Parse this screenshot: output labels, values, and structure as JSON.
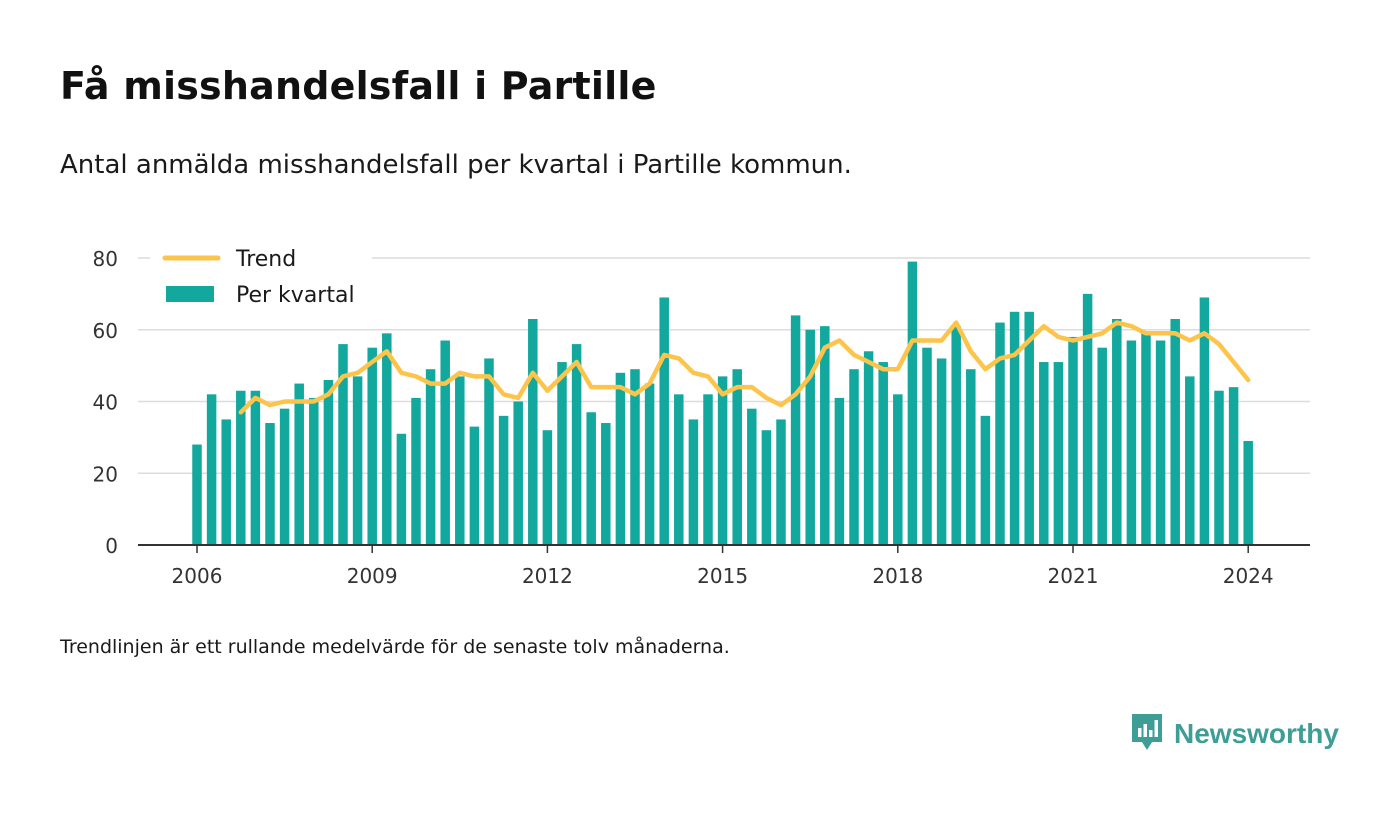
{
  "header": {
    "title": "Få misshandelsfall i Partille",
    "subtitle": "Antal anmälda misshandelsfall per kvartal i Partille kommun."
  },
  "footer": {
    "note": "Trendlinjen är ett rullande medelvärde för de senaste tolv månaderna.",
    "brand": "Newsworthy",
    "brand_icon": "bar-chart-speech-bubble-icon"
  },
  "colors": {
    "bar": "#13a89e",
    "trend": "#fcc44b",
    "grid": "#dcdcdc",
    "axis": "#333333",
    "brand": "#3e9e95"
  },
  "chart_data": {
    "type": "bar",
    "title": "Få misshandelsfall i Partille",
    "subtitle": "Antal anmälda misshandelsfall per kvartal i Partille kommun.",
    "xlabel": "",
    "ylabel": "",
    "ylim": [
      0,
      80
    ],
    "yticks": [
      "0",
      "20",
      "40",
      "60",
      "80"
    ],
    "xticks": [
      "2006",
      "2009",
      "2012",
      "2015",
      "2018",
      "2021",
      "2024"
    ],
    "grid": true,
    "legend_position": "top-left",
    "categories": [
      "2006 Q1",
      "2006 Q2",
      "2006 Q3",
      "2006 Q4",
      "2007 Q1",
      "2007 Q2",
      "2007 Q3",
      "2007 Q4",
      "2008 Q1",
      "2008 Q2",
      "2008 Q3",
      "2008 Q4",
      "2009 Q1",
      "2009 Q2",
      "2009 Q3",
      "2009 Q4",
      "2010 Q1",
      "2010 Q2",
      "2010 Q3",
      "2010 Q4",
      "2011 Q1",
      "2011 Q2",
      "2011 Q3",
      "2011 Q4",
      "2012 Q1",
      "2012 Q2",
      "2012 Q3",
      "2012 Q4",
      "2013 Q1",
      "2013 Q2",
      "2013 Q3",
      "2013 Q4",
      "2014 Q1",
      "2014 Q2",
      "2014 Q3",
      "2014 Q4",
      "2015 Q1",
      "2015 Q2",
      "2015 Q3",
      "2015 Q4",
      "2016 Q1",
      "2016 Q2",
      "2016 Q3",
      "2016 Q4",
      "2017 Q1",
      "2017 Q2",
      "2017 Q3",
      "2017 Q4",
      "2018 Q1",
      "2018 Q2",
      "2018 Q3",
      "2018 Q4",
      "2019 Q1",
      "2019 Q2",
      "2019 Q3",
      "2019 Q4",
      "2020 Q1",
      "2020 Q2",
      "2020 Q3",
      "2020 Q4",
      "2021 Q1",
      "2021 Q2",
      "2021 Q3",
      "2021 Q4",
      "2022 Q1",
      "2022 Q2",
      "2022 Q3",
      "2022 Q4",
      "2023 Q1",
      "2023 Q2",
      "2023 Q3",
      "2023 Q4",
      "2024 Q1"
    ],
    "series": [
      {
        "name": "Per kvartal",
        "type": "bar",
        "values": [
          28,
          42,
          35,
          43,
          43,
          34,
          38,
          45,
          41,
          46,
          56,
          47,
          55,
          59,
          31,
          41,
          49,
          57,
          47,
          33,
          52,
          36,
          40,
          63,
          32,
          51,
          56,
          37,
          34,
          48,
          49,
          45,
          69,
          42,
          35,
          42,
          47,
          49,
          38,
          32,
          35,
          64,
          60,
          61,
          41,
          49,
          54,
          51,
          42,
          79,
          55,
          52,
          61,
          49,
          36,
          62,
          65,
          65,
          51,
          51,
          58,
          70,
          55,
          63,
          57,
          59,
          57,
          63,
          47,
          69,
          43,
          44,
          29
        ]
      },
      {
        "name": "Trend",
        "type": "line",
        "values": [
          null,
          null,
          null,
          37,
          41,
          39,
          40,
          40,
          40,
          42,
          47,
          48,
          51,
          54,
          48,
          47,
          45,
          45,
          48,
          47,
          47,
          42,
          41,
          48,
          43,
          47,
          51,
          44,
          44,
          44,
          42,
          45,
          53,
          52,
          48,
          47,
          42,
          44,
          44,
          41,
          39,
          42,
          47,
          55,
          57,
          53,
          51,
          49,
          49,
          57,
          57,
          57,
          62,
          54,
          49,
          52,
          53,
          57,
          61,
          58,
          57,
          58,
          59,
          62,
          61,
          59,
          59,
          59,
          57,
          59,
          56,
          51,
          46
        ]
      }
    ]
  }
}
